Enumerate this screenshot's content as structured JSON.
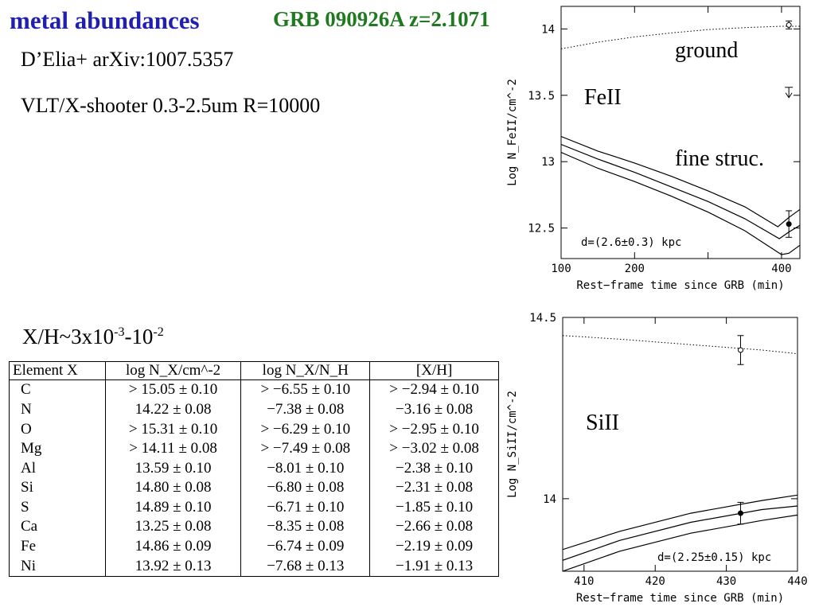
{
  "slide": {
    "title": "metal abundances",
    "grb": "GRB 090926A z=2.1071",
    "citation": "D’Elia+ arXiv:1007.5357",
    "instrument": "VLT/X-shooter 0.3-2.5um R=10000",
    "ratio": {
      "prefix": "X/H~3x10",
      "exp1": "-3",
      "mid": "-10",
      "exp2": "-2"
    },
    "colors": {
      "title": "#1f1fb0",
      "grb": "#1f7a1f"
    }
  },
  "table": {
    "headers": [
      "Element X",
      "log N_X/cm^-2",
      "log N_X/N_H",
      "[X/H]"
    ],
    "rows": [
      [
        "C",
        "> 15.05 ± 0.10",
        "> −6.55 ± 0.10",
        "> −2.94 ± 0.10"
      ],
      [
        "N",
        "14.22 ± 0.08",
        "−7.38 ± 0.08",
        "−3.16 ± 0.08"
      ],
      [
        "O",
        "> 15.31 ± 0.10",
        "> −6.29 ± 0.10",
        "> −2.95 ± 0.10"
      ],
      [
        "Mg",
        "> 14.11 ± 0.08",
        "> −7.49 ± 0.08",
        "> −3.02 ± 0.08"
      ],
      [
        "Al",
        "13.59 ± 0.10",
        "−8.01 ± 0.10",
        "−2.38 ± 0.10"
      ],
      [
        "Si",
        "14.80 ± 0.08",
        "−6.80 ± 0.08",
        "−2.31 ± 0.08"
      ],
      [
        "S",
        "14.89 ± 0.10",
        "−6.71 ± 0.10",
        "−1.85 ± 0.10"
      ],
      [
        "Ca",
        "13.25 ± 0.08",
        "−8.35 ± 0.08",
        "−2.66 ± 0.08"
      ],
      [
        "Fe",
        "14.86 ± 0.09",
        "−6.74 ± 0.09",
        "−2.19 ± 0.09"
      ],
      [
        "Ni",
        "13.92 ± 0.13",
        "−7.68 ± 0.13",
        "−1.91 ± 0.13"
      ]
    ]
  },
  "chart_data": [
    {
      "type": "line",
      "xlabel": "Rest−frame time since GRB (min)",
      "ylabel": "Log N_FeII/cm^-2",
      "xlim": [
        100,
        425
      ],
      "ylim": [
        12.27,
        14.17
      ],
      "xticks": [
        100,
        200,
        300,
        400
      ],
      "xticklabels": [
        "100",
        "200",
        "",
        "400"
      ],
      "yticks": [
        12.5,
        13,
        13.5,
        14
      ],
      "yticklabels": [
        "12.5",
        "13",
        "13.5",
        "14"
      ],
      "annotations": [
        "ground",
        "FeII",
        "fine struc.",
        "d=(2.6±0.3) kpc"
      ],
      "series": [
        {
          "style": "dotted",
          "x": [
            100,
            150,
            200,
            250,
            300,
            350,
            400,
            425
          ],
          "y": [
            13.85,
            13.9,
            13.94,
            13.97,
            13.995,
            14.01,
            14.02,
            14.02
          ]
        },
        {
          "style": "solid",
          "x": [
            100,
            150,
            200,
            250,
            300,
            350,
            395,
            410,
            425
          ],
          "y": [
            13.19,
            13.08,
            12.99,
            12.89,
            12.78,
            12.66,
            12.51,
            12.58,
            12.64
          ]
        },
        {
          "style": "solid",
          "x": [
            100,
            150,
            200,
            250,
            300,
            350,
            397,
            410,
            425
          ],
          "y": [
            13.13,
            13.02,
            12.92,
            12.81,
            12.7,
            12.57,
            12.42,
            12.47,
            12.52
          ]
        },
        {
          "style": "solid",
          "x": [
            100,
            150,
            200,
            250,
            300,
            350,
            400,
            410,
            425
          ],
          "y": [
            13.07,
            12.95,
            12.85,
            12.74,
            12.62,
            12.48,
            12.3,
            12.31,
            12.37
          ]
        }
      ],
      "points": [
        {
          "x": 410,
          "y": 14.03,
          "err": 0.03,
          "marker": "open"
        },
        {
          "x": 410,
          "y": 12.53,
          "err": 0.1,
          "marker": "filled"
        }
      ],
      "upper_limits": [
        {
          "x": 410,
          "y": 13.56
        }
      ]
    },
    {
      "type": "line",
      "xlabel": "Rest−frame time since GRB (min)",
      "ylabel": "Log N_SiII/cm^-2",
      "xlim": [
        407,
        440
      ],
      "ylim": [
        13.8,
        14.5
      ],
      "xticks": [
        410,
        420,
        430,
        440
      ],
      "xticklabels": [
        "410",
        "420",
        "430",
        "440"
      ],
      "yticks": [
        14,
        14.5
      ],
      "yticklabels": [
        "14",
        "14.5"
      ],
      "annotations": [
        "SiII",
        "d=(2.25±0.15) kpc"
      ],
      "series": [
        {
          "style": "dotted",
          "x": [
            407,
            415,
            425,
            435,
            440
          ],
          "y": [
            14.45,
            14.44,
            14.425,
            14.41,
            14.4
          ]
        },
        {
          "style": "solid",
          "x": [
            407,
            415,
            425,
            435,
            440
          ],
          "y": [
            13.86,
            13.91,
            13.96,
            13.995,
            14.01
          ]
        },
        {
          "style": "solid",
          "x": [
            407,
            415,
            425,
            435,
            440
          ],
          "y": [
            13.83,
            13.885,
            13.935,
            13.97,
            13.98
          ]
        },
        {
          "style": "solid",
          "x": [
            407,
            415,
            425,
            435,
            440
          ],
          "y": [
            13.8,
            13.855,
            13.905,
            13.94,
            13.955
          ]
        }
      ],
      "points": [
        {
          "x": 432,
          "y": 14.41,
          "err": 0.04,
          "marker": "open"
        },
        {
          "x": 432,
          "y": 13.96,
          "err": 0.03,
          "marker": "filled"
        }
      ]
    }
  ]
}
